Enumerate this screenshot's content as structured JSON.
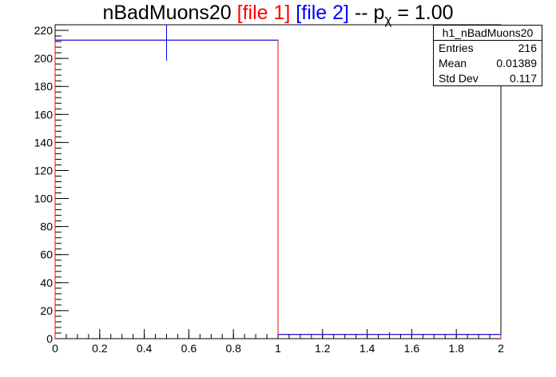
{
  "title": {
    "main": "nBadMuons20",
    "file1": "[file 1]",
    "file2": "[file 2]",
    "pchi_prefix": "-- p",
    "pchi_sub": "χ",
    "pchi_value": "= 1.00"
  },
  "stats": {
    "name": "h1_nBadMuons20",
    "rows": [
      {
        "label": "Entries",
        "value": "216"
      },
      {
        "label": "Mean",
        "value": "0.01389"
      },
      {
        "label": "Std Dev",
        "value": "0.117"
      }
    ]
  },
  "colors": {
    "file1": "#ff0000",
    "file2": "#0000ff",
    "axis": "#000000"
  },
  "chart_data": {
    "type": "bar",
    "title": "nBadMuons20 [file 1] [file 2] -- p_χ = 1.00",
    "xlim": [
      0,
      2
    ],
    "ylim": [
      0,
      224
    ],
    "x_ticks": [
      0,
      0.2,
      0.4,
      0.6,
      0.8,
      1,
      1.2,
      1.4,
      1.6,
      1.8,
      2
    ],
    "x_tick_labels": [
      "0",
      "0.2",
      "0.4",
      "0.6",
      "0.8",
      "1",
      "1.2",
      "1.4",
      "1.6",
      "1.8",
      "2"
    ],
    "y_ticks": [
      0,
      20,
      40,
      60,
      80,
      100,
      120,
      140,
      160,
      180,
      200,
      220
    ],
    "y_tick_labels": [
      "0",
      "20",
      "40",
      "60",
      "80",
      "100",
      "120",
      "140",
      "160",
      "180",
      "200",
      "220"
    ],
    "bin_edges": [
      0,
      1,
      2
    ],
    "series": [
      {
        "name": "file 1",
        "color": "#ff0000",
        "values": [
          213,
          3
        ]
      },
      {
        "name": "file 2",
        "color": "#0000ff",
        "values": [
          213,
          3
        ],
        "errors": [
          14.6,
          1.7
        ]
      }
    ],
    "legend": "top-right"
  }
}
